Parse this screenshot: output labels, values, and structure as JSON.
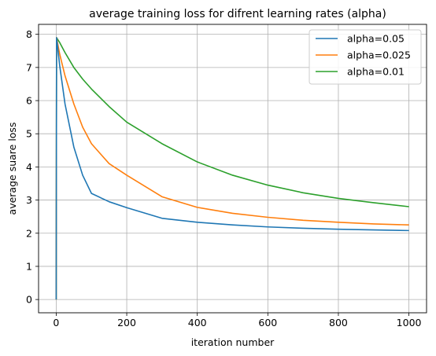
{
  "chart_data": {
    "type": "line",
    "title": "average training loss for difrent learning rates (alpha)",
    "xlabel": "iteration number",
    "ylabel": "average suare loss",
    "xlim": [
      -50,
      1050
    ],
    "ylim": [
      -0.4,
      8.3
    ],
    "xticks": [
      0,
      200,
      400,
      600,
      800,
      1000
    ],
    "yticks": [
      0,
      1,
      2,
      3,
      4,
      5,
      6,
      7,
      8
    ],
    "grid": true,
    "legend_position": "top-right",
    "series": [
      {
        "name": "alpha=0.05",
        "color": "#1f77b4",
        "x": [
          0,
          1,
          10,
          25,
          50,
          75,
          100,
          150,
          200,
          300,
          400,
          500,
          600,
          700,
          800,
          900,
          1000
        ],
        "y": [
          0,
          7.9,
          7.05,
          5.9,
          4.6,
          3.75,
          3.2,
          2.95,
          2.77,
          2.45,
          2.33,
          2.25,
          2.19,
          2.15,
          2.12,
          2.1,
          2.08
        ]
      },
      {
        "name": "alpha=0.025",
        "color": "#ff7f0e",
        "x": [
          0,
          1,
          10,
          25,
          50,
          75,
          100,
          150,
          200,
          300,
          400,
          500,
          600,
          700,
          800,
          900,
          1000
        ],
        "y": [
          0,
          7.9,
          7.4,
          6.75,
          5.9,
          5.2,
          4.7,
          4.1,
          3.75,
          3.1,
          2.78,
          2.6,
          2.48,
          2.39,
          2.33,
          2.28,
          2.25
        ]
      },
      {
        "name": "alpha=0.01",
        "color": "#2ca02c",
        "x": [
          0,
          1,
          10,
          25,
          50,
          75,
          100,
          150,
          200,
          300,
          400,
          500,
          600,
          700,
          800,
          900,
          1000
        ],
        "y": [
          0,
          7.9,
          7.75,
          7.45,
          7.0,
          6.65,
          6.35,
          5.82,
          5.35,
          4.7,
          4.15,
          3.75,
          3.45,
          3.22,
          3.05,
          2.92,
          2.8
        ]
      }
    ]
  }
}
